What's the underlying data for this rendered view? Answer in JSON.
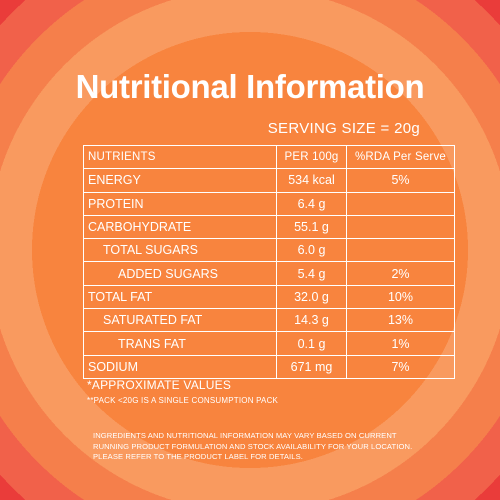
{
  "title": "Nutritional Information",
  "serving_size": "SERVING SIZE = 20g",
  "table": {
    "headers": [
      "NUTRIENTS",
      "PER 100g",
      "%RDA Per Serve"
    ],
    "rows": [
      {
        "name": "ENERGY",
        "per100": "534 kcal",
        "rda": "5%",
        "indent": 0
      },
      {
        "name": "PROTEIN",
        "per100": "6.4 g",
        "rda": "",
        "indent": 0
      },
      {
        "name": "CARBOHYDRATE",
        "per100": "55.1 g",
        "rda": "",
        "indent": 0
      },
      {
        "name": "TOTAL SUGARS",
        "per100": "6.0 g",
        "rda": "",
        "indent": 1
      },
      {
        "name": "ADDED SUGARS",
        "per100": "5.4 g",
        "rda": "2%",
        "indent": 2
      },
      {
        "name": "TOTAL FAT",
        "per100": "32.0 g",
        "rda": "10%",
        "indent": 0
      },
      {
        "name": "SATURATED FAT",
        "per100": "14.3 g",
        "rda": "13%",
        "indent": 1
      },
      {
        "name": "TRANS FAT",
        "per100": "0.1 g",
        "rda": "1%",
        "indent": 1
      },
      {
        "name": "SODIUM",
        "per100": "671 mg",
        "rda": "7%",
        "indent": 0
      }
    ]
  },
  "notes": {
    "approx": "*APPROXIMATE VALUES",
    "pack": "**PACK <20G IS A SINGLE CONSUMPTION PACK"
  },
  "disclaimer": "INGREDIENTS AND NUTRITIONAL INFORMATION MAY VARY BASED ON CURRENT RUNNING PRODUCT FORMULATION AND STOCK AVAILABILITY FOR YOUR LOCATION. PLEASE REFER TO THE PRODUCT LABEL FOR DETAILS.",
  "colors": {
    "inner_circle": "#f8843e",
    "ring_light": "#f99a5f",
    "ring_mid": "#f57f4b",
    "ring_outer": "#f1614a",
    "edge_red": "#ea3c3a",
    "text": "#ffffff"
  }
}
